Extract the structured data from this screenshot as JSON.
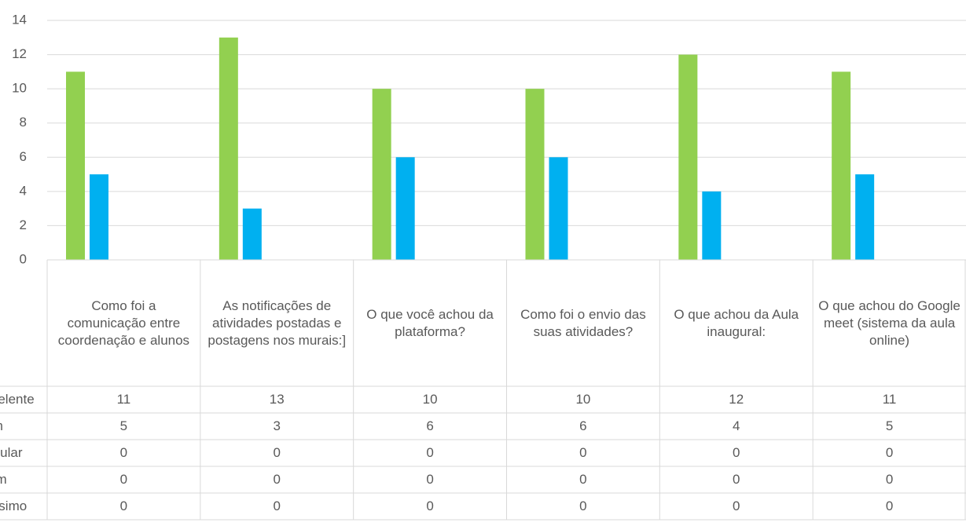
{
  "chart_data": {
    "type": "bar",
    "categories": [
      "Como foi a comunicação entre coordenação e alunos",
      "As notificações de atividades postadas e postagens nos murais:]",
      "O que você achou da plataforma?",
      "Como foi o envio das suas atividades?",
      "O que achou da Aula inaugural:",
      "O que achou do Google meet (sistema da aula online)"
    ],
    "series": [
      {
        "name": "Excelente",
        "color": "#92d050",
        "values": [
          11,
          13,
          10,
          10,
          12,
          11
        ]
      },
      {
        "name": "Bom",
        "color": "#00b0f0",
        "values": [
          5,
          3,
          6,
          6,
          4,
          5
        ]
      },
      {
        "name": "Regular",
        "color": "#ffc000",
        "values": [
          0,
          0,
          0,
          0,
          0,
          0
        ]
      },
      {
        "name": "Ruim",
        "color": "#ed7d31",
        "values": [
          0,
          0,
          0,
          0,
          0,
          0
        ]
      },
      {
        "name": "Péssimo",
        "color": "#c00000",
        "values": [
          0,
          0,
          0,
          0,
          0,
          0
        ]
      }
    ],
    "ylim": [
      0,
      14
    ],
    "yticks": [
      0,
      2,
      4,
      6,
      8,
      10,
      12,
      14
    ],
    "grid": true,
    "data_table": true
  }
}
